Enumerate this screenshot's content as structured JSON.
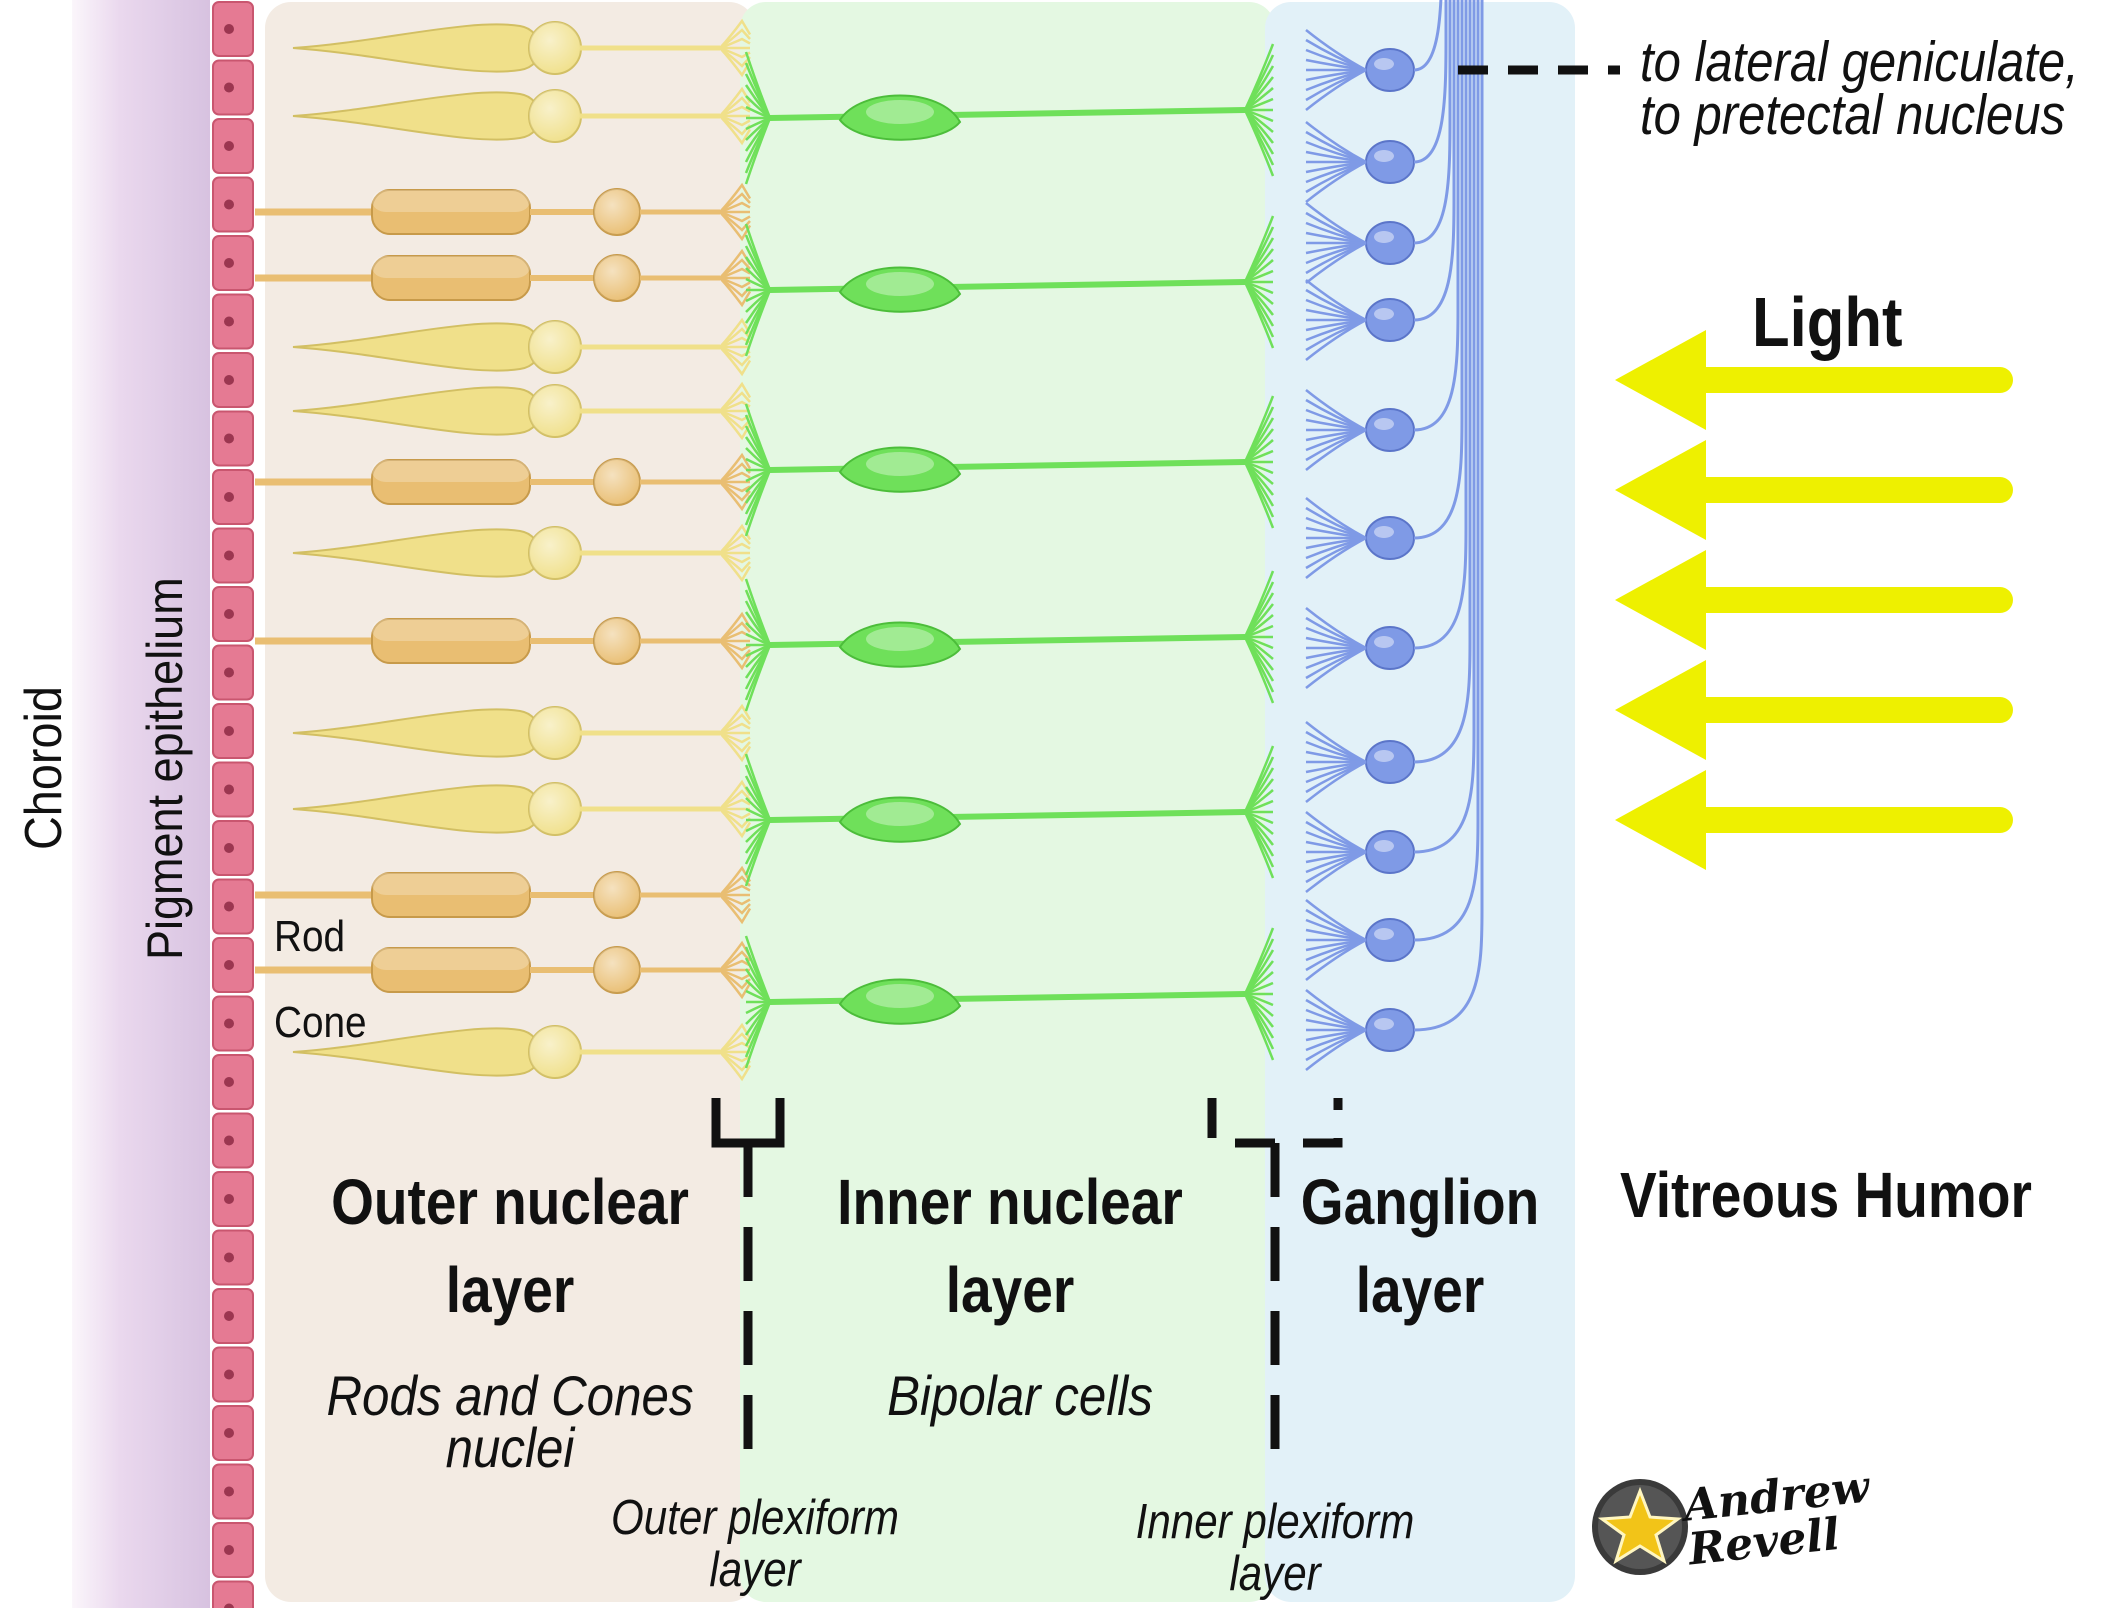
{
  "labels": {
    "choroid": "Choroid",
    "pigment_epithelium": "Pigment epithelium",
    "rod": "Rod",
    "cone": "Cone",
    "light": "Light",
    "vitreous_humor": "Vitreous Humor",
    "destination_line1": "to lateral geniculate,",
    "destination_line2": "to pretectal nucleus"
  },
  "layers": {
    "outer_nuclear": {
      "title_line1": "Outer nuclear",
      "title_line2": "layer",
      "subtitle_line1": "Rods and Cones",
      "subtitle_line2": "nuclei"
    },
    "inner_nuclear": {
      "title_line1": "Inner nuclear",
      "title_line2": "layer",
      "subtitle": "Bipolar cells"
    },
    "ganglion": {
      "title_line1": "Ganglion",
      "title_line2": "layer"
    }
  },
  "plexiform": {
    "outer_line1": "Outer plexiform",
    "outer_line2": "layer",
    "inner_line1": "Inner plexiform",
    "inner_line2": "layer"
  },
  "signature": {
    "line1": "Andrew",
    "line2": "Revell"
  },
  "colors": {
    "choroid": "#e2d2ea",
    "pigment": "#e57a93",
    "outer_bg": "#f3ebe3",
    "inner_bg": "#e4f8e2",
    "ganglion_bg": "#e2f1f8",
    "rod": "#e9be72",
    "cone": "#f0e08a",
    "bipolar": "#6fe05a",
    "ganglion_cell": "#7f9ae6",
    "light_arrow": "#eef000"
  }
}
